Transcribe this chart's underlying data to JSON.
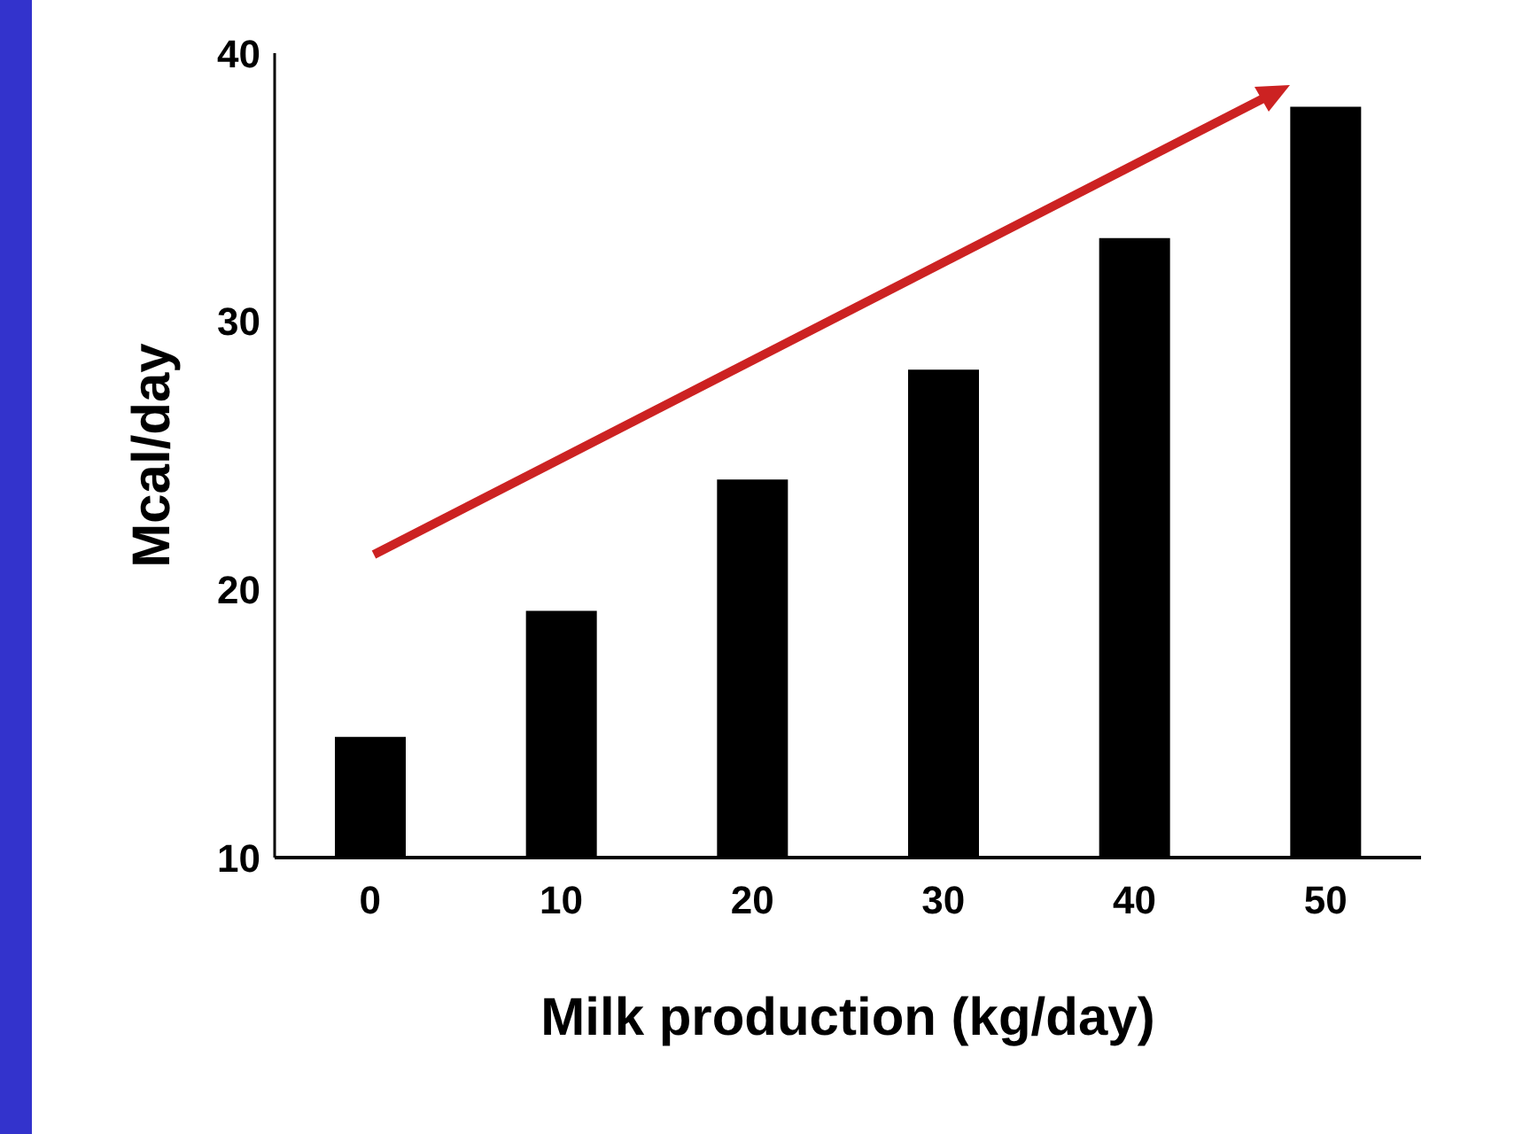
{
  "chart_data": {
    "type": "bar",
    "xlabel": "Milk production (kg/day)",
    "ylabel": "Mcal/day",
    "categories": [
      "0",
      "10",
      "20",
      "30",
      "40",
      "50"
    ],
    "values": [
      14.5,
      19.2,
      24.1,
      28.2,
      33.1,
      38.0
    ],
    "color": "#000000",
    "ylim": [
      10,
      40
    ],
    "yticks": [
      10,
      20,
      30,
      40
    ],
    "grid": false
  }
}
